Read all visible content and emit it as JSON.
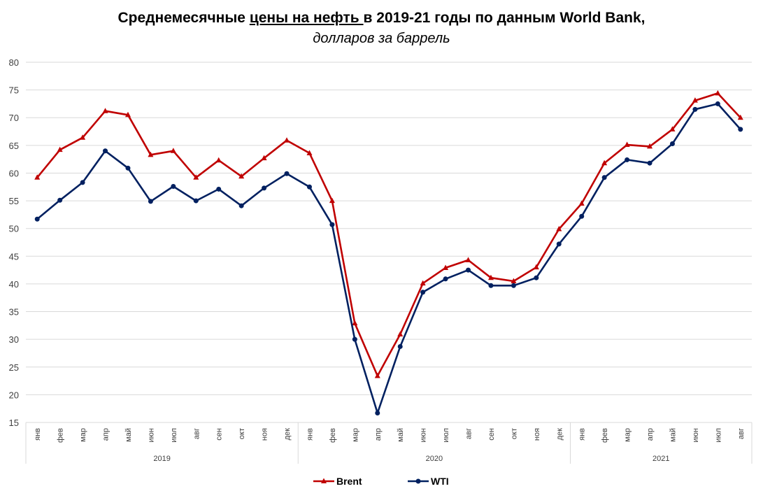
{
  "title": {
    "prefix": "Среднемесячные ",
    "underlined": "цены на нефть ",
    "suffix": "в 2019-21 годы по данным World Bank,",
    "subtitle": "долларов за баррель"
  },
  "chart_data": {
    "type": "line",
    "title": "Среднемесячные цены на нефть в 2019-21 годы по данным World Bank, долларов за баррель",
    "xlabel": "",
    "ylabel": "",
    "ylim": [
      15,
      80
    ],
    "yticks": [
      15,
      20,
      25,
      30,
      35,
      40,
      45,
      50,
      55,
      60,
      65,
      70,
      75,
      80
    ],
    "grid": true,
    "legend_position": "bottom",
    "year_groups": [
      {
        "label": "2019",
        "months": [
          "янв",
          "фев",
          "мар",
          "апр",
          "май",
          "июн",
          "июл",
          "авг",
          "сен",
          "окт",
          "ноя",
          "дек"
        ]
      },
      {
        "label": "2020",
        "months": [
          "янв",
          "фев",
          "мар",
          "апр",
          "май",
          "июн",
          "июл",
          "авг",
          "сен",
          "окт",
          "ноя",
          "дек"
        ]
      },
      {
        "label": "2021",
        "months": [
          "янв",
          "фев",
          "мар",
          "апр",
          "май",
          "июн",
          "июл",
          "авг"
        ]
      }
    ],
    "series": [
      {
        "name": "Brent",
        "color": "#C00000",
        "marker": "triangle",
        "values": [
          59.2,
          64.2,
          66.4,
          71.2,
          70.5,
          63.3,
          64.0,
          59.2,
          62.3,
          59.4,
          62.7,
          65.9,
          63.6,
          55.0,
          32.9,
          23.4,
          30.9,
          40.1,
          42.9,
          44.3,
          41.1,
          40.5,
          43.0,
          49.9,
          54.5,
          61.8,
          65.1,
          64.8,
          67.9,
          73.1,
          74.4,
          70.0
        ]
      },
      {
        "name": "WTI",
        "color": "#002060",
        "marker": "circle",
        "values": [
          51.7,
          55.1,
          58.3,
          64.0,
          60.9,
          54.9,
          57.6,
          55.0,
          57.1,
          54.1,
          57.3,
          59.9,
          57.5,
          50.7,
          30.0,
          16.7,
          28.7,
          38.5,
          40.9,
          42.5,
          39.7,
          39.7,
          41.1,
          47.2,
          52.2,
          59.2,
          62.4,
          61.8,
          65.3,
          71.5,
          72.5,
          67.9
        ]
      }
    ]
  }
}
